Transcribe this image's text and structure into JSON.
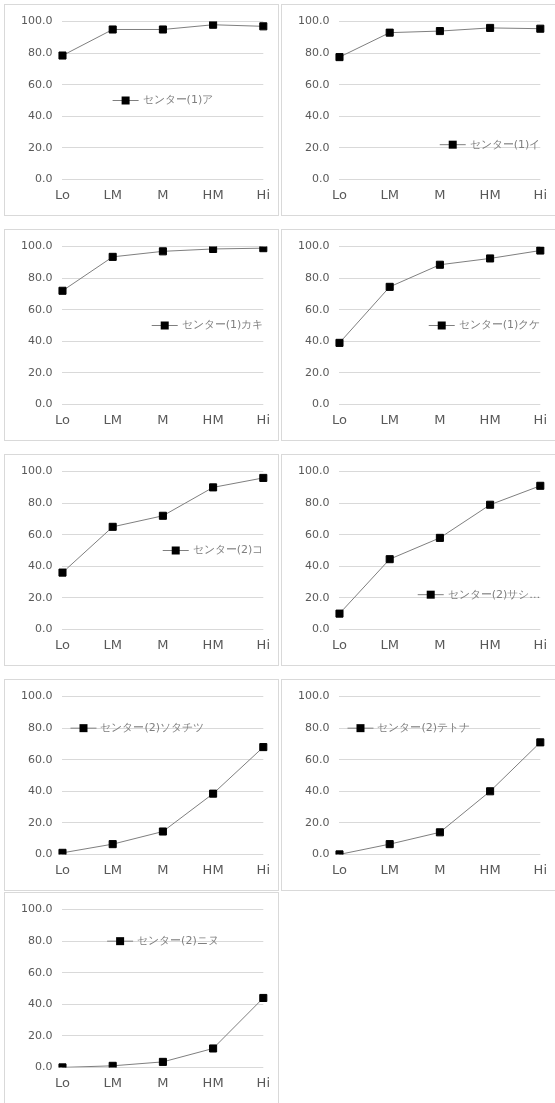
{
  "chart_data": [
    {
      "type": "line",
      "categories": [
        "Lo",
        "LM",
        "M",
        "HM",
        "Hi"
      ],
      "series": [
        {
          "name": "センター(1)ア",
          "color": "#000000",
          "values": [
            78.5,
            95,
            95,
            98,
            97
          ]
        }
      ],
      "ylim": [
        0,
        100
      ],
      "yticks": [
        {
          "value": 0,
          "label": "0.0"
        },
        {
          "value": 20,
          "label": "20.0"
        },
        {
          "value": 40,
          "label": "40.0"
        },
        {
          "value": 60,
          "label": "60.0"
        },
        {
          "value": 80,
          "label": "80.0"
        },
        {
          "value": 100,
          "label": "100.0"
        }
      ],
      "grid": "y",
      "legend": "center",
      "marker": "square"
    },
    {
      "type": "line",
      "categories": [
        "Lo",
        "LM",
        "M",
        "HM",
        "Hi"
      ],
      "series": [
        {
          "name": "センター(1)イ",
          "color": "#000000",
          "values": [
            77.5,
            93,
            94,
            96,
            95.5
          ]
        }
      ],
      "ylim": [
        0,
        100
      ],
      "yticks": [
        {
          "value": 0,
          "label": "0.0"
        },
        {
          "value": 20,
          "label": "20.0"
        },
        {
          "value": 40,
          "label": "40.0"
        },
        {
          "value": 60,
          "label": "60.0"
        },
        {
          "value": 80,
          "label": "80.0"
        },
        {
          "value": 100,
          "label": "100.0"
        }
      ],
      "grid": "y",
      "legend": "bottom right",
      "marker": "square"
    },
    {
      "type": "line",
      "categories": [
        "Lo",
        "LM",
        "M",
        "HM",
        "Hi"
      ],
      "series": [
        {
          "name": "センター(1)カキ",
          "color": "#000000",
          "values": [
            72,
            93.5,
            97,
            98.5,
            99
          ]
        }
      ],
      "ylim": [
        0,
        100
      ],
      "yticks": [
        {
          "value": 0,
          "label": "0.0"
        },
        {
          "value": 20,
          "label": "20.0"
        },
        {
          "value": 40,
          "label": "40.0"
        },
        {
          "value": 60,
          "label": "60.0"
        },
        {
          "value": 80,
          "label": "80.0"
        },
        {
          "value": 100,
          "label": "100.0"
        }
      ],
      "grid": "y",
      "legend": "center right",
      "marker": "square"
    },
    {
      "type": "line",
      "categories": [
        "Lo",
        "LM",
        "M",
        "HM",
        "Hi"
      ],
      "series": [
        {
          "name": "センター(1)クケ",
          "color": "#000000",
          "values": [
            39,
            74.5,
            88.5,
            92.5,
            97.5
          ]
        }
      ],
      "ylim": [
        0,
        100
      ],
      "yticks": [
        {
          "value": 0,
          "label": "0.0"
        },
        {
          "value": 20,
          "label": "20.0"
        },
        {
          "value": 40,
          "label": "40.0"
        },
        {
          "value": 60,
          "label": "60.0"
        },
        {
          "value": 80,
          "label": "80.0"
        },
        {
          "value": 100,
          "label": "100.0"
        }
      ],
      "grid": "y",
      "legend": "center right",
      "marker": "square"
    },
    {
      "type": "line",
      "categories": [
        "Lo",
        "LM",
        "M",
        "HM",
        "Hi"
      ],
      "series": [
        {
          "name": "センター(2)コ",
          "color": "#000000",
          "values": [
            36,
            65,
            72,
            90,
            96
          ]
        }
      ],
      "ylim": [
        0,
        100
      ],
      "yticks": [
        {
          "value": 0,
          "label": "0.0"
        },
        {
          "value": 20,
          "label": "20.0"
        },
        {
          "value": 40,
          "label": "40.0"
        },
        {
          "value": 60,
          "label": "60.0"
        },
        {
          "value": 80,
          "label": "80.0"
        },
        {
          "value": 100,
          "label": "100.0"
        }
      ],
      "grid": "y",
      "legend": "center right",
      "marker": "square"
    },
    {
      "type": "line",
      "categories": [
        "Lo",
        "LM",
        "M",
        "HM",
        "Hi"
      ],
      "series": [
        {
          "name": "センター(2)サシ…",
          "color": "#000000",
          "values": [
            10,
            44.5,
            58,
            79,
            91
          ]
        }
      ],
      "ylim": [
        0,
        100
      ],
      "yticks": [
        {
          "value": 0,
          "label": "0.0"
        },
        {
          "value": 20,
          "label": "20.0"
        },
        {
          "value": 40,
          "label": "40.0"
        },
        {
          "value": 60,
          "label": "60.0"
        },
        {
          "value": 80,
          "label": "80.0"
        },
        {
          "value": 100,
          "label": "100.0"
        }
      ],
      "grid": "y",
      "legend": "bottom right",
      "marker": "square"
    },
    {
      "type": "line",
      "categories": [
        "Lo",
        "LM",
        "M",
        "HM",
        "Hi"
      ],
      "series": [
        {
          "name": "センター(2)ソタチツ",
          "color": "#000000",
          "values": [
            1,
            6.5,
            14.5,
            38.5,
            68
          ]
        }
      ],
      "ylim": [
        0,
        100
      ],
      "yticks": [
        {
          "value": 0,
          "label": "0.0"
        },
        {
          "value": 20,
          "label": "20.0"
        },
        {
          "value": 40,
          "label": "40.0"
        },
        {
          "value": 60,
          "label": "60.0"
        },
        {
          "value": 80,
          "label": "80.0"
        },
        {
          "value": 100,
          "label": "100.0"
        }
      ],
      "grid": "y",
      "legend": "top left",
      "marker": "square"
    },
    {
      "type": "line",
      "categories": [
        "Lo",
        "LM",
        "M",
        "HM",
        "Hi"
      ],
      "series": [
        {
          "name": "センター(2)テトナ",
          "color": "#000000",
          "values": [
            0,
            6.5,
            14,
            40,
            71
          ]
        }
      ],
      "ylim": [
        0,
        100
      ],
      "yticks": [
        {
          "value": 0,
          "label": "0.0"
        },
        {
          "value": 20,
          "label": "20.0"
        },
        {
          "value": 40,
          "label": "40.0"
        },
        {
          "value": 60,
          "label": "60.0"
        },
        {
          "value": 80,
          "label": "80.0"
        },
        {
          "value": 100,
          "label": "100.0"
        }
      ],
      "grid": "y",
      "legend": "top left",
      "marker": "square"
    },
    {
      "type": "line",
      "categories": [
        "Lo",
        "LM",
        "M",
        "HM",
        "Hi"
      ],
      "series": [
        {
          "name": "センター(2)ニヌ",
          "color": "#000000",
          "values": [
            0,
            1,
            3.5,
            12,
            44
          ]
        }
      ],
      "ylim": [
        0,
        100
      ],
      "yticks": [
        {
          "value": 0,
          "label": "0.0"
        },
        {
          "value": 20,
          "label": "20.0"
        },
        {
          "value": 40,
          "label": "40.0"
        },
        {
          "value": 60,
          "label": "60.0"
        },
        {
          "value": 80,
          "label": "80.0"
        },
        {
          "value": 100,
          "label": "100.0"
        }
      ],
      "grid": "y",
      "legend": "top",
      "marker": "square"
    }
  ]
}
